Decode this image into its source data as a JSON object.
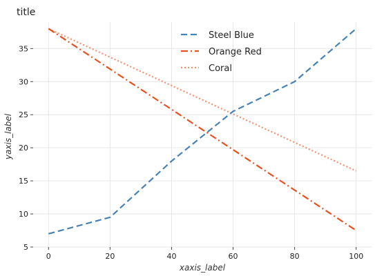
{
  "chart_data": {
    "type": "line",
    "title": "title",
    "xlabel": "xaxis_label",
    "ylabel": "yaxis_label",
    "xlim": [
      -5,
      105
    ],
    "ylim": [
      5,
      39
    ],
    "x_ticks": [
      0,
      20,
      40,
      60,
      80,
      100
    ],
    "y_ticks": [
      5,
      10,
      15,
      20,
      25,
      30,
      35
    ],
    "grid": true,
    "legend_position": "top-center",
    "series": [
      {
        "name": "Steel Blue",
        "color": "#4682b4",
        "dash": "dashed",
        "x": [
          0,
          20,
          40,
          60,
          80,
          100
        ],
        "y": [
          7.0,
          9.5,
          18.0,
          25.5,
          30.0,
          38.0
        ]
      },
      {
        "name": "Orange Red",
        "color": "#e8501e",
        "dash": "dashdot",
        "x": [
          0,
          100
        ],
        "y": [
          38.0,
          7.5
        ]
      },
      {
        "name": "Coral",
        "color": "#f4906c",
        "dash": "dotted",
        "x": [
          0,
          100
        ],
        "y": [
          38.0,
          16.5
        ]
      }
    ]
  }
}
